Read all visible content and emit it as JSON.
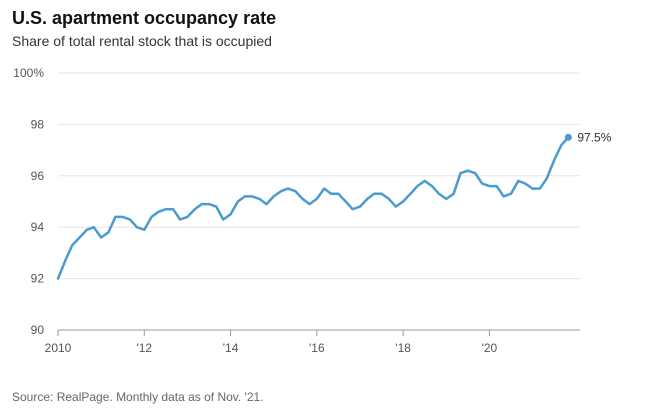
{
  "title": "U.S. apartment occupancy rate",
  "subtitle": "Share of total rental stock that is occupied",
  "source": "Source: RealPage. Monthly data as of Nov. '21.",
  "colors": {
    "line": "#4a9bd0",
    "grid": "#e6e6e6",
    "axis": "#999999"
  },
  "chart_data": {
    "type": "line",
    "title": "U.S. apartment occupancy rate",
    "subtitle": "Share of total rental stock that is occupied",
    "ylim": [
      90,
      100
    ],
    "yticks": [
      90,
      92,
      94,
      96,
      98,
      100
    ],
    "ytick_labels": [
      "90",
      "92",
      "94",
      "96",
      "98",
      "100%"
    ],
    "xlim": [
      2010,
      2022.1
    ],
    "xticks": [
      2010,
      2012,
      2014,
      2016,
      2018,
      2020
    ],
    "xtick_labels": [
      "2010",
      "'12",
      "'14",
      "'16",
      "'18",
      "'20"
    ],
    "grid": true,
    "end_label": "97.5%",
    "series": [
      {
        "x": [
          2010.0,
          2010.17,
          2010.33,
          2010.5,
          2010.67,
          2010.83,
          2011.0,
          2011.17,
          2011.33,
          2011.5,
          2011.67,
          2011.83,
          2012.0,
          2012.17,
          2012.33,
          2012.5,
          2012.67,
          2012.83,
          2013.0,
          2013.17,
          2013.33,
          2013.5,
          2013.67,
          2013.83,
          2014.0,
          2014.17,
          2014.33,
          2014.5,
          2014.67,
          2014.83,
          2015.0,
          2015.17,
          2015.33,
          2015.5,
          2015.67,
          2015.83,
          2016.0,
          2016.17,
          2016.33,
          2016.5,
          2016.67,
          2016.83,
          2017.0,
          2017.17,
          2017.33,
          2017.5,
          2017.67,
          2017.83,
          2018.0,
          2018.17,
          2018.33,
          2018.5,
          2018.67,
          2018.83,
          2019.0,
          2019.17,
          2019.33,
          2019.5,
          2019.67,
          2019.83,
          2020.0,
          2020.17,
          2020.33,
          2020.5,
          2020.67,
          2020.83,
          2021.0,
          2021.17,
          2021.33,
          2021.5,
          2021.67,
          2021.83
        ],
        "y": [
          92.0,
          92.7,
          93.3,
          93.6,
          93.9,
          94.0,
          93.6,
          93.8,
          94.4,
          94.4,
          94.3,
          94.0,
          93.9,
          94.4,
          94.6,
          94.7,
          94.7,
          94.3,
          94.4,
          94.7,
          94.9,
          94.9,
          94.8,
          94.3,
          94.5,
          95.0,
          95.2,
          95.2,
          95.1,
          94.9,
          95.2,
          95.4,
          95.5,
          95.4,
          95.1,
          94.9,
          95.1,
          95.5,
          95.3,
          95.3,
          95.0,
          94.7,
          94.8,
          95.1,
          95.3,
          95.3,
          95.1,
          94.8,
          95.0,
          95.3,
          95.6,
          95.8,
          95.6,
          95.3,
          95.1,
          95.3,
          96.1,
          96.2,
          96.1,
          95.7,
          95.6,
          95.6,
          95.2,
          95.3,
          95.8,
          95.7,
          95.5,
          95.5,
          95.9,
          96.6,
          97.2,
          97.5
        ]
      }
    ]
  }
}
